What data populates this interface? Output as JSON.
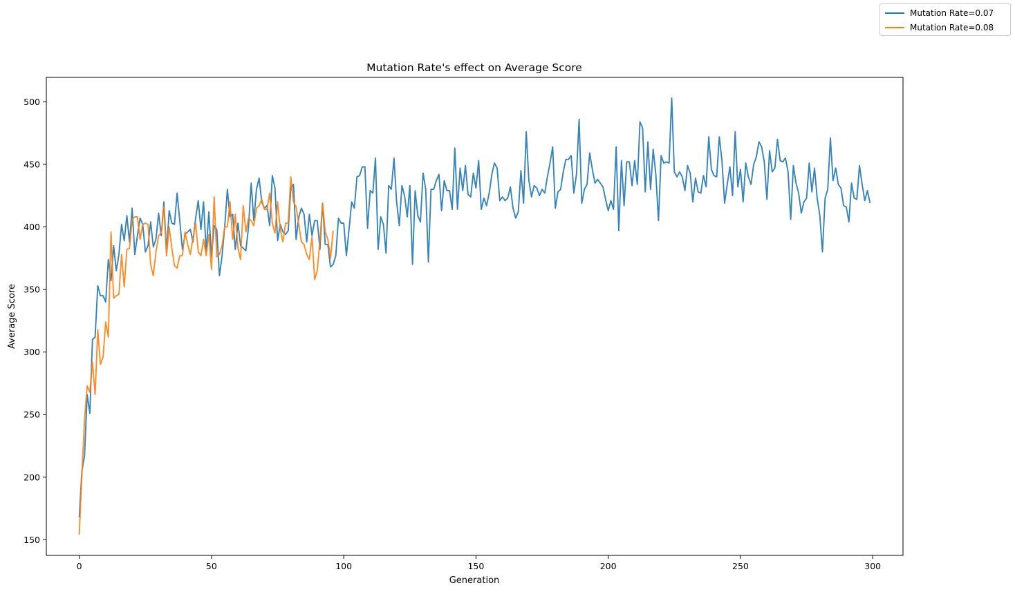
{
  "chart_data": {
    "type": "line",
    "title": "Mutation Rate's effect on Average Score",
    "xlabel": "Generation",
    "ylabel": "Average Score",
    "xlim": [
      -12.45,
      311.45
    ],
    "ylim": [
      137.5,
      519.5
    ],
    "xticks": [
      0,
      50,
      100,
      150,
      200,
      250,
      300
    ],
    "yticks": [
      150,
      200,
      250,
      300,
      350,
      400,
      450,
      500
    ],
    "grid": false,
    "legend_position": "top-right (outside plot)",
    "series": [
      {
        "name": "Mutation Rate=0.07",
        "color": "#1f77b4",
        "values": [
          168,
          205,
          217,
          266,
          251,
          310,
          312,
          353,
          345,
          345,
          340,
          374,
          357,
          385,
          365,
          378,
          402,
          389,
          409,
          388,
          415,
          378,
          393,
          407,
          402,
          380,
          385,
          404,
          384,
          390,
          411,
          393,
          420,
          380,
          413,
          403,
          402,
          427,
          405,
          382,
          394,
          396,
          398,
          388,
          407,
          421,
          398,
          420,
          380,
          412,
          376,
          401,
          398,
          361,
          377,
          400,
          430,
          408,
          410,
          382,
          403,
          385,
          383,
          381,
          400,
          435,
          405,
          430,
          439,
          420,
          415,
          417,
          401,
          441,
          431,
          389,
          402,
          396,
          394,
          397,
          431,
          434,
          390,
          408,
          415,
          410,
          388,
          410,
          393,
          405,
          405,
          382,
          419,
          386,
          386,
          368,
          370,
          377,
          407,
          403,
          403,
          377,
          398,
          420,
          415,
          440,
          441,
          448,
          448,
          399,
          429,
          427,
          455,
          382,
          408,
          402,
          379,
          433,
          430,
          455,
          420,
          401,
          433,
          425,
          408,
          433,
          370,
          429,
          409,
          404,
          443,
          430,
          372,
          430,
          430,
          437,
          442,
          413,
          437,
          429,
          429,
          414,
          463,
          414,
          447,
          429,
          449,
          426,
          424,
          443,
          431,
          453,
          414,
          423,
          417,
          427,
          442,
          451,
          447,
          421,
          424,
          421,
          423,
          432,
          415,
          407,
          412,
          445,
          419,
          476,
          437,
          424,
          433,
          431,
          425,
          430,
          427,
          440,
          451,
          464,
          415,
          428,
          430,
          444,
          454,
          454,
          457,
          427,
          442,
          486,
          419,
          430,
          434,
          459,
          446,
          435,
          438,
          435,
          432,
          422,
          413,
          421,
          414,
          464,
          397,
          453,
          417,
          452,
          452,
          433,
          453,
          434,
          484,
          479,
          428,
          468,
          430,
          462,
          442,
          405,
          457,
          451,
          452,
          451,
          503,
          444,
          440,
          444,
          440,
          429,
          449,
          443,
          420,
          439,
          428,
          427,
          441,
          432,
          472,
          446,
          441,
          440,
          472,
          453,
          419,
          434,
          448,
          425,
          476,
          432,
          446,
          420,
          451,
          440,
          434,
          450,
          456,
          468,
          464,
          452,
          422,
          461,
          444,
          447,
          470,
          453,
          452,
          455,
          444,
          406,
          449,
          435,
          427,
          411,
          420,
          423,
          451,
          428,
          447,
          423,
          409,
          380,
          423,
          430,
          471,
          437,
          447,
          434,
          431,
          417,
          416,
          404,
          435,
          423,
          422,
          449,
          434,
          421,
          429,
          419
        ]
      },
      {
        "name": "Mutation Rate=0.08",
        "color": "#ff7f0e",
        "values": [
          154,
          202,
          246,
          273,
          268,
          292,
          266,
          318,
          290,
          296,
          324,
          312,
          396,
          343,
          345,
          346,
          378,
          352,
          382,
          383,
          406,
          408,
          408,
          390,
          402,
          403,
          402,
          370,
          361,
          380,
          393,
          395,
          416,
          377,
          400,
          383,
          369,
          367,
          377,
          377,
          396,
          386,
          378,
          391,
          403,
          380,
          377,
          390,
          377,
          394,
          366,
          424,
          376,
          378,
          385,
          400,
          400,
          420,
          390,
          410,
          383,
          374,
          417,
          396,
          407,
          405,
          401,
          415,
          417,
          422,
          414,
          414,
          427,
          403,
          395,
          420,
          398,
          388,
          403,
          403,
          440,
          420,
          416,
          402,
          388,
          386,
          378,
          374,
          392,
          358,
          365,
          389,
          419,
          396,
          390,
          375,
          397
        ]
      }
    ]
  }
}
